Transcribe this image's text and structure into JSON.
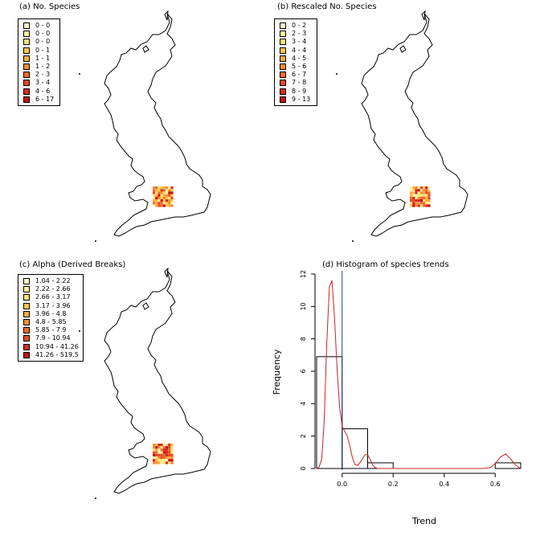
{
  "chart_data": [
    {
      "type": "choropleth",
      "title": "(a) No. Species",
      "legend": [
        {
          "label": "0 - 0",
          "color": "#FFFFCC"
        },
        {
          "label": "0 - 0",
          "color": "#FFF5A0"
        },
        {
          "label": "0 - 0",
          "color": "#FFE27A"
        },
        {
          "label": "0 - 1",
          "color": "#FFC84E"
        },
        {
          "label": "1 - 1",
          "color": "#FDAA40"
        },
        {
          "label": "1 - 2",
          "color": "#F88B34"
        },
        {
          "label": "2 - 3",
          "color": "#F06A2C"
        },
        {
          "label": "3 - 4",
          "color": "#E54A22"
        },
        {
          "label": "4 - 6",
          "color": "#D82B1A"
        },
        {
          "label": "6 - 17",
          "color": "#C80E10"
        }
      ],
      "legend_position": "top-left"
    },
    {
      "type": "choropleth",
      "title": "(b) Rescaled No. Species",
      "legend": [
        {
          "label": "0 - 2",
          "color": "#FFFFCC"
        },
        {
          "label": "2 - 3",
          "color": "#FFF5A0"
        },
        {
          "label": "3 - 4",
          "color": "#FFE27A"
        },
        {
          "label": "4 - 4",
          "color": "#FFC84E"
        },
        {
          "label": "4 - 5",
          "color": "#FDAA40"
        },
        {
          "label": "5 - 6",
          "color": "#F88B34"
        },
        {
          "label": "6 - 7",
          "color": "#F06A2C"
        },
        {
          "label": "7 - 8",
          "color": "#E54A22"
        },
        {
          "label": "8 - 9",
          "color": "#D82B1A"
        },
        {
          "label": "9 - 13",
          "color": "#C80E10"
        }
      ],
      "legend_position": "top-left"
    },
    {
      "type": "choropleth",
      "title": "(c) Alpha (Derived Breaks)",
      "legend": [
        {
          "label": "1.04 - 2.22",
          "color": "#FFFFCC"
        },
        {
          "label": "2.22 - 2.66",
          "color": "#FFF5A0"
        },
        {
          "label": "2.66 - 3.17",
          "color": "#FFE27A"
        },
        {
          "label": "3.17 - 3.96",
          "color": "#FFC84E"
        },
        {
          "label": "3.96 - 4.8",
          "color": "#FDAA40"
        },
        {
          "label": "4.8 - 5.85",
          "color": "#F88B34"
        },
        {
          "label": "5.85 - 7.9",
          "color": "#F06A2C"
        },
        {
          "label": "7.9 - 10.94",
          "color": "#E54A22"
        },
        {
          "label": "10.94 - 41.26",
          "color": "#D82B1A"
        },
        {
          "label": "41.26 - 519.5",
          "color": "#C80E10"
        }
      ],
      "legend_position": "top-left"
    },
    {
      "type": "histogram",
      "title": "(d) Histogram of species trends",
      "xlabel": "Trend",
      "ylabel": "Frequency",
      "xlim": [
        -0.1,
        0.7
      ],
      "ylim": [
        0,
        12
      ],
      "xticks": [
        "0.0",
        "0.2",
        "0.4",
        "0.6"
      ],
      "xtick_values": [
        0.0,
        0.2,
        0.4,
        0.6
      ],
      "yticks": [
        "0",
        "2",
        "4",
        "6",
        "8",
        "10",
        "12"
      ],
      "ytick_values": [
        0,
        2,
        4,
        6,
        8,
        10,
        12
      ],
      "bins": [
        {
          "x0": -0.1,
          "x1": 0.0,
          "freq": 6.9
        },
        {
          "x0": 0.0,
          "x1": 0.1,
          "freq": 2.45
        },
        {
          "x0": 0.1,
          "x1": 0.2,
          "freq": 0.35
        },
        {
          "x0": 0.6,
          "x1": 0.7,
          "freq": 0.35
        }
      ],
      "density_curve": {
        "color": "#CC2222",
        "x": [
          -0.1,
          -0.09,
          -0.08,
          -0.07,
          -0.06,
          -0.05,
          -0.04,
          -0.03,
          -0.02,
          -0.01,
          0.0,
          0.01,
          0.02,
          0.03,
          0.04,
          0.05,
          0.06,
          0.07,
          0.08,
          0.09,
          0.1,
          0.11,
          0.12,
          0.13,
          0.14,
          0.15,
          0.2,
          0.3,
          0.4,
          0.5,
          0.55,
          0.58,
          0.6,
          0.62,
          0.64,
          0.66,
          0.68,
          0.7
        ],
        "y": [
          0.0,
          0.1,
          0.6,
          3.0,
          7.8,
          11.2,
          11.6,
          9.4,
          6.2,
          3.8,
          2.6,
          2.3,
          2.0,
          1.4,
          0.7,
          0.25,
          0.2,
          0.35,
          0.6,
          0.85,
          0.85,
          0.55,
          0.2,
          0.05,
          0.0,
          0.0,
          0.0,
          0.0,
          0.0,
          0.0,
          0.0,
          0.05,
          0.3,
          0.7,
          0.9,
          0.6,
          0.2,
          0.0
        ]
      },
      "vline_x": 0.0,
      "vline_color": "#1F3D99"
    }
  ]
}
